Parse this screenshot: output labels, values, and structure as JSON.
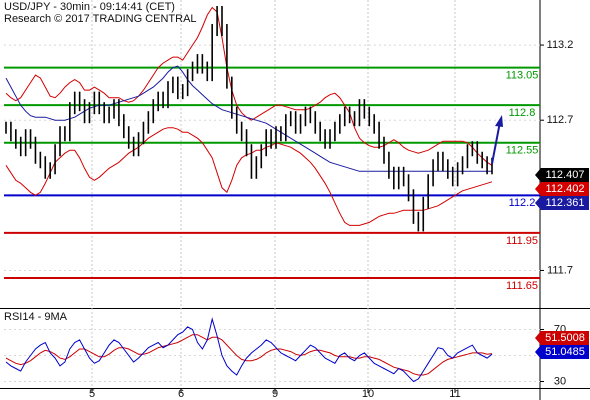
{
  "header": {
    "title": "USD/JPY - 30min - 09:14:41 (CET)",
    "research": "Research © 2017 TRADING CENTRAL"
  },
  "colors": {
    "price": "#000000",
    "bollinger": "#d40000",
    "moving_average": "#1a1aa0",
    "resistance": "#009900",
    "pivot": "#0000cc",
    "support": "#cc0000",
    "arrow": "#1a1aa0",
    "rsi": "#0000cc",
    "rsi_signal": "#cc0000"
  },
  "chart_data": [
    {
      "type": "line",
      "x_ticks": [
        "5",
        "6",
        "9",
        "10",
        "11"
      ],
      "y_ticks": [
        "113.2",
        "112.7",
        "112.2",
        "111.7"
      ],
      "ylim": [
        111.45,
        113.5
      ],
      "levels": [
        {
          "label": "113.05",
          "value": 113.05,
          "kind": "resistance"
        },
        {
          "label": "112.8",
          "value": 112.8,
          "kind": "resistance"
        },
        {
          "label": "112.55",
          "value": 112.55,
          "kind": "resistance"
        },
        {
          "label": "112.2",
          "value": 112.2,
          "kind": "pivot"
        },
        {
          "label": "111.95",
          "value": 111.95,
          "kind": "support"
        },
        {
          "label": "111.65",
          "value": 111.65,
          "kind": "support"
        }
      ],
      "price_labels": [
        {
          "label": "112.407",
          "value": 112.407,
          "kind": "last"
        },
        {
          "label": "112.402",
          "value": 112.402,
          "kind": "bollinger"
        },
        {
          "label": "112.361",
          "value": 112.361,
          "kind": "moving_average"
        }
      ],
      "price": [
        112.65,
        112.6,
        112.55,
        112.5,
        112.6,
        112.55,
        112.45,
        112.42,
        112.35,
        112.38,
        112.5,
        112.62,
        112.6,
        112.78,
        112.85,
        112.8,
        112.72,
        112.78,
        112.85,
        112.78,
        112.72,
        112.75,
        112.8,
        112.7,
        112.62,
        112.55,
        112.5,
        112.58,
        112.65,
        112.72,
        112.8,
        112.85,
        112.82,
        112.92,
        112.95,
        112.88,
        112.9,
        113.0,
        113.05,
        113.1,
        113.05,
        113.0,
        113.3,
        113.42,
        113.3,
        112.95,
        112.75,
        112.65,
        112.6,
        112.5,
        112.35,
        112.42,
        112.5,
        112.6,
        112.55,
        112.62,
        112.6,
        112.7,
        112.72,
        112.65,
        112.7,
        112.75,
        112.72,
        112.65,
        112.6,
        112.55,
        112.6,
        112.65,
        112.7,
        112.75,
        112.72,
        112.7,
        112.8,
        112.75,
        112.7,
        112.65,
        112.55,
        112.45,
        112.35,
        112.28,
        112.35,
        112.3,
        112.2,
        112.05,
        112.0,
        112.15,
        112.3,
        112.4,
        112.45,
        112.4,
        112.35,
        112.3,
        112.38,
        112.42,
        112.5,
        112.52,
        112.45,
        112.42,
        112.38,
        112.41
      ],
      "bollinger_upper": [
        112.88,
        112.85,
        112.83,
        112.85,
        112.9,
        112.95,
        113.0,
        112.98,
        112.92,
        112.86,
        112.85,
        112.88,
        112.92,
        112.95,
        112.97,
        112.95,
        112.9,
        112.9,
        112.92,
        112.9,
        112.88,
        112.85,
        112.85,
        112.85,
        112.83,
        112.82,
        112.83,
        112.86,
        112.9,
        112.95,
        113.0,
        113.05,
        113.08,
        113.1,
        113.12,
        113.12,
        113.1,
        113.15,
        113.2,
        113.25,
        113.32,
        113.4,
        113.45,
        113.42,
        113.25,
        113.05,
        112.9,
        112.8,
        112.75,
        112.72,
        112.7,
        112.72,
        112.74,
        112.76,
        112.78,
        112.8,
        112.8,
        112.79,
        112.78,
        112.77,
        112.77,
        112.77,
        112.78,
        112.8,
        112.82,
        112.85,
        112.87,
        112.88,
        112.85,
        112.8,
        112.75,
        112.65,
        112.58,
        112.55,
        112.53,
        112.52,
        112.52,
        112.53,
        112.55,
        112.57,
        112.55,
        112.52,
        112.5,
        112.49,
        112.48,
        112.49,
        112.5,
        112.52,
        112.54,
        112.56,
        112.56,
        112.56,
        112.56,
        112.56,
        112.55,
        112.52,
        112.48,
        112.45,
        112.42,
        112.4
      ],
      "bollinger_lower": [
        112.4,
        112.35,
        112.3,
        112.28,
        112.25,
        112.22,
        112.2,
        112.22,
        112.28,
        112.35,
        112.42,
        112.45,
        112.48,
        112.5,
        112.5,
        112.45,
        112.38,
        112.32,
        112.3,
        112.32,
        112.35,
        112.38,
        112.4,
        112.42,
        112.45,
        112.48,
        112.5,
        112.52,
        112.55,
        112.58,
        112.6,
        112.62,
        112.64,
        112.65,
        112.65,
        112.64,
        112.62,
        112.62,
        112.6,
        112.58,
        112.55,
        112.5,
        112.45,
        112.35,
        112.25,
        112.22,
        112.3,
        112.4,
        112.45,
        112.47,
        112.48,
        112.5,
        112.5,
        112.52,
        112.53,
        112.55,
        112.54,
        112.53,
        112.52,
        112.5,
        112.48,
        112.45,
        112.42,
        112.38,
        112.33,
        112.28,
        112.22,
        112.15,
        112.08,
        112.02,
        112.0,
        112.0,
        112.0,
        112.01,
        112.02,
        112.04,
        112.06,
        112.07,
        112.08,
        112.08,
        112.09,
        112.1,
        112.1,
        112.1,
        112.1,
        112.1,
        112.11,
        112.12,
        112.13,
        112.15,
        112.17,
        112.19,
        112.21,
        112.23,
        112.24,
        112.25,
        112.26,
        112.27,
        112.28,
        112.29
      ],
      "moving_average": [
        112.98,
        112.92,
        112.86,
        112.8,
        112.76,
        112.73,
        112.72,
        112.72,
        112.72,
        112.71,
        112.7,
        112.7,
        112.7,
        112.71,
        112.72,
        112.74,
        112.76,
        112.78,
        112.79,
        112.8,
        112.8,
        112.8,
        112.81,
        112.82,
        112.83,
        112.84,
        112.85,
        112.86,
        112.88,
        112.9,
        112.92,
        112.95,
        112.98,
        113.02,
        113.05,
        113.06,
        113.02,
        112.97,
        112.93,
        112.9,
        112.87,
        112.84,
        112.81,
        112.79,
        112.77,
        112.76,
        112.75,
        112.74,
        112.73,
        112.72,
        112.71,
        112.7,
        112.69,
        112.68,
        112.66,
        112.64,
        112.62,
        112.6,
        112.58,
        112.56,
        112.54,
        112.52,
        112.5,
        112.48,
        112.46,
        112.44,
        112.42,
        112.41,
        112.4,
        112.39,
        112.38,
        112.37,
        112.36,
        112.36,
        112.36,
        112.36,
        112.36,
        112.36,
        112.36,
        112.36,
        112.36,
        112.36,
        112.36,
        112.36,
        112.36,
        112.36,
        112.36,
        112.36,
        112.36,
        112.36,
        112.36,
        112.36,
        112.36,
        112.36,
        112.36,
        112.36,
        112.36,
        112.36,
        112.36,
        112.36
      ]
    },
    {
      "type": "line",
      "title": "RSI14 - 9MA",
      "y_ticks": [
        "70",
        "50",
        "30"
      ],
      "ylim": [
        25,
        85
      ],
      "value_labels": [
        {
          "label": "51.5008",
          "value": 51.5008,
          "kind": "signal"
        },
        {
          "label": "51.0485",
          "value": 51.0485,
          "kind": "rsi"
        }
      ],
      "rsi": [
        45,
        42,
        40,
        38,
        45,
        50,
        55,
        58,
        60,
        52,
        48,
        42,
        45,
        55,
        60,
        62,
        55,
        48,
        44,
        46,
        52,
        58,
        62,
        60,
        55,
        50,
        45,
        48,
        52,
        56,
        58,
        60,
        56,
        58,
        62,
        66,
        68,
        72,
        70,
        60,
        55,
        62,
        78,
        65,
        50,
        42,
        38,
        35,
        42,
        48,
        52,
        55,
        58,
        62,
        60,
        56,
        52,
        50,
        48,
        46,
        50,
        54,
        58,
        56,
        52,
        48,
        46,
        44,
        50,
        52,
        48,
        46,
        50,
        52,
        48,
        44,
        42,
        40,
        38,
        36,
        40,
        38,
        34,
        30,
        32,
        38,
        44,
        50,
        56,
        55,
        50,
        48,
        52,
        54,
        56,
        58,
        52,
        50,
        48,
        51
      ],
      "signal": [
        48,
        46,
        44,
        43,
        44,
        46,
        49,
        52,
        54,
        53,
        51,
        48,
        47,
        49,
        52,
        55,
        55,
        53,
        51,
        49,
        49,
        51,
        54,
        56,
        56,
        55,
        53,
        51,
        51,
        52,
        54,
        56,
        57,
        58,
        59,
        60,
        62,
        64,
        66,
        66,
        64,
        62,
        64,
        64,
        62,
        58,
        54,
        50,
        47,
        46,
        46,
        47,
        49,
        52,
        54,
        55,
        55,
        54,
        53,
        51,
        50,
        51,
        53,
        54,
        54,
        53,
        52,
        50,
        49,
        49,
        49,
        48,
        48,
        49,
        49,
        48,
        47,
        45,
        43,
        41,
        40,
        39,
        38,
        36,
        35,
        35,
        36,
        39,
        42,
        45,
        47,
        48,
        49,
        50,
        51,
        52,
        52,
        52,
        51,
        51.5
      ]
    }
  ]
}
